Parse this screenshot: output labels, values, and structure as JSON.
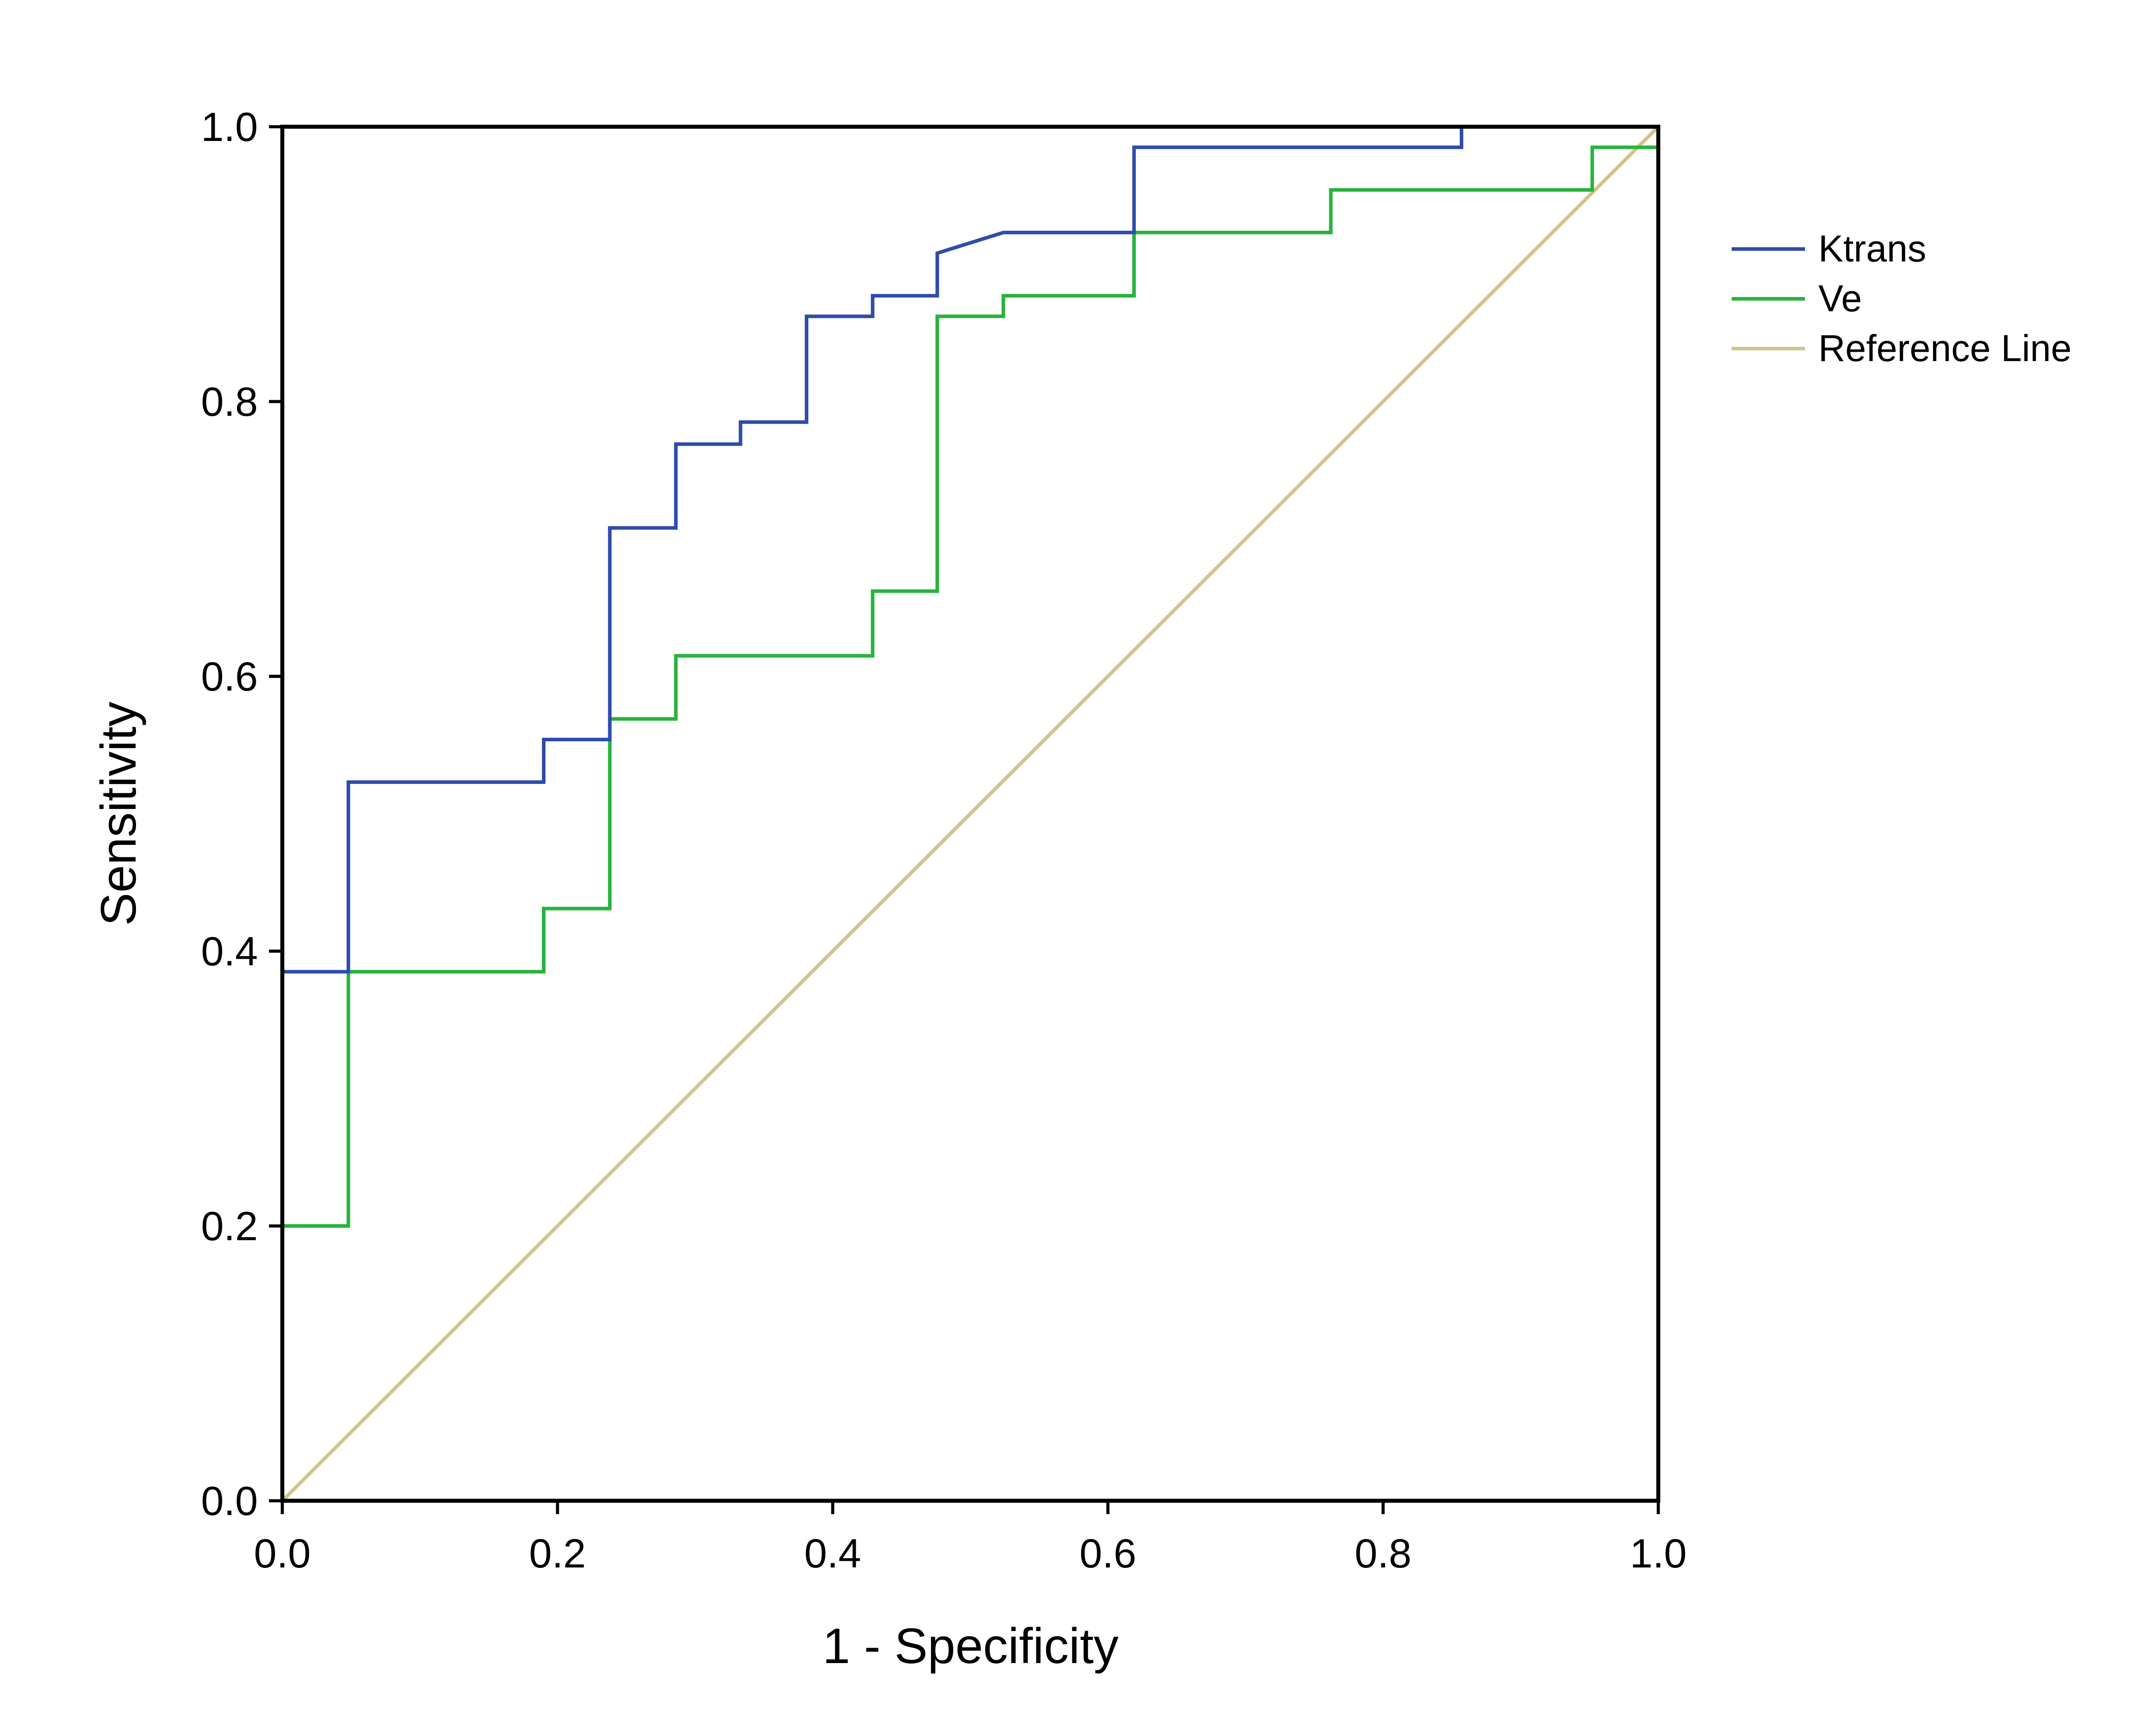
{
  "chart_data": {
    "type": "line",
    "title": "",
    "xlabel": "1 - Specificity",
    "ylabel": "Sensitivity",
    "xlim": [
      0.0,
      1.0
    ],
    "ylim": [
      0.0,
      1.0
    ],
    "grid": false,
    "legend_position": "right",
    "x_ticks": [
      {
        "value": 0.0,
        "label": "0.0"
      },
      {
        "value": 0.2,
        "label": "0.2"
      },
      {
        "value": 0.4,
        "label": "0.4"
      },
      {
        "value": 0.6,
        "label": "0.6"
      },
      {
        "value": 0.8,
        "label": "0.8"
      },
      {
        "value": 1.0,
        "label": "1.0"
      }
    ],
    "y_ticks": [
      {
        "value": 0.0,
        "label": "0.0"
      },
      {
        "value": 0.2,
        "label": "0.2"
      },
      {
        "value": 0.4,
        "label": "0.4"
      },
      {
        "value": 0.6,
        "label": "0.6"
      },
      {
        "value": 0.8,
        "label": "0.8"
      },
      {
        "value": 1.0,
        "label": "1.0"
      }
    ],
    "series": [
      {
        "name": "Ktrans",
        "color": "#2f4bad",
        "x": [
          0.0,
          0.0,
          0.048,
          0.048,
          0.19,
          0.19,
          0.238,
          0.238,
          0.286,
          0.286,
          0.333,
          0.333,
          0.381,
          0.381,
          0.429,
          0.429,
          0.476,
          0.476,
          0.524,
          0.619,
          0.619,
          0.857,
          0.857,
          1.0
        ],
        "y": [
          0.0,
          0.385,
          0.385,
          0.523,
          0.523,
          0.554,
          0.554,
          0.708,
          0.708,
          0.769,
          0.769,
          0.785,
          0.785,
          0.862,
          0.862,
          0.877,
          0.877,
          0.908,
          0.923,
          0.923,
          0.985,
          0.985,
          1.0,
          1.0
        ]
      },
      {
        "name": "Ve",
        "color": "#27b33c",
        "x": [
          0.0,
          0.0,
          0.048,
          0.048,
          0.19,
          0.19,
          0.238,
          0.238,
          0.286,
          0.286,
          0.429,
          0.429,
          0.476,
          0.476,
          0.524,
          0.524,
          0.619,
          0.619,
          0.762,
          0.762,
          0.952,
          0.952,
          1.0,
          1.0
        ],
        "y": [
          0.0,
          0.2,
          0.2,
          0.385,
          0.385,
          0.431,
          0.431,
          0.569,
          0.569,
          0.615,
          0.615,
          0.662,
          0.662,
          0.862,
          0.862,
          0.877,
          0.877,
          0.923,
          0.923,
          0.954,
          0.954,
          0.985,
          0.985,
          1.0
        ]
      },
      {
        "name": "Reference Line",
        "color": "#d2c48c",
        "x": [
          0.0,
          1.0
        ],
        "y": [
          0.0,
          1.0
        ]
      }
    ]
  }
}
